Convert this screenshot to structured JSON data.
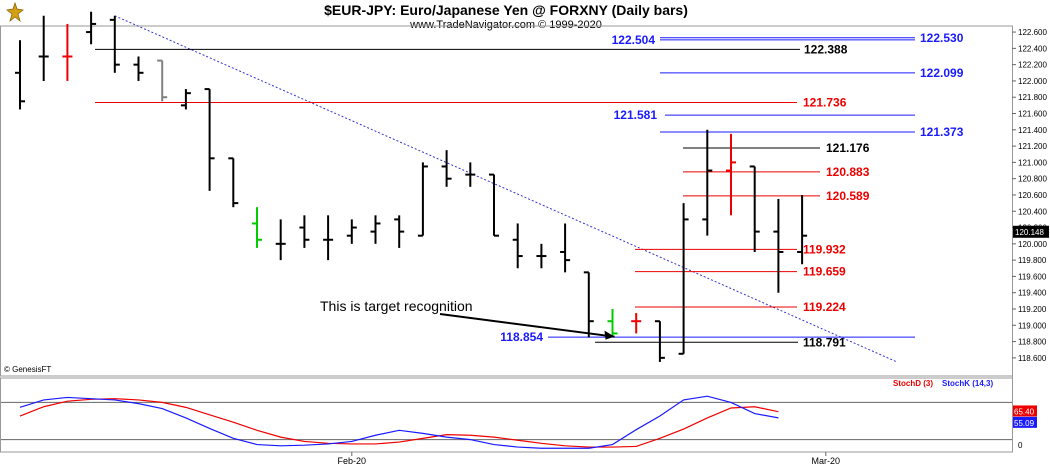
{
  "header": {
    "title": "$EUR-JPY:  Euro/Japanese Yen @ FORXNY  (Daily bars)",
    "subtitle": "www.TradeNavigator.com © 1999-2020"
  },
  "copyright": "© GenesisFT",
  "annotation": "This is target recognition",
  "colors": {
    "up": "#000000",
    "down": "#000000",
    "red": "#ee0000",
    "blue": "#1a1aff",
    "green": "#00cc00",
    "grid": "#cccccc"
  },
  "chart_data": [
    {
      "type": "ohlc",
      "title": "$EUR-JPY:  Euro/Japanese Yen @ FORXNY  (Daily bars)",
      "ylim": [
        118.5,
        122.65
      ],
      "y_ticks": [
        "122.600",
        "122.400",
        "122.200",
        "122.000",
        "121.800",
        "121.600",
        "121.400",
        "121.200",
        "121.000",
        "120.800",
        "120.600",
        "120.400",
        "120.200",
        "120.000",
        "119.800",
        "119.600",
        "119.400",
        "119.200",
        "119.000",
        "118.800",
        "118.600"
      ],
      "last_price": "120.148",
      "x_labels": [
        {
          "label": "Feb-20",
          "bar": 14
        },
        {
          "label": "Mar-20",
          "bar": 34
        }
      ],
      "bars": [
        {
          "o": 122.1,
          "h": 122.5,
          "l": 121.65,
          "c": 121.75
        },
        {
          "o": 122.3,
          "h": 122.8,
          "l": 122.0,
          "c": 122.3
        },
        {
          "o": 122.3,
          "h": 122.7,
          "l": 122.0,
          "c": 122.3,
          "color": "red"
        },
        {
          "o": 122.6,
          "h": 122.85,
          "l": 122.45,
          "c": 122.7
        },
        {
          "o": 122.75,
          "h": 122.8,
          "l": 122.1,
          "c": 122.2
        },
        {
          "o": 122.2,
          "h": 122.3,
          "l": 122.0,
          "c": 122.1
        },
        {
          "o": 122.25,
          "h": 122.25,
          "l": 121.75,
          "c": 121.8,
          "color": "gray"
        },
        {
          "o": 121.7,
          "h": 121.9,
          "l": 121.65,
          "c": 121.85
        },
        {
          "o": 121.9,
          "h": 121.9,
          "l": 120.65,
          "c": 121.05
        },
        {
          "o": 121.05,
          "h": 121.05,
          "l": 120.45,
          "c": 120.5
        },
        {
          "o": 120.25,
          "h": 120.45,
          "l": 119.95,
          "c": 120.05,
          "color": "green"
        },
        {
          "o": 120.0,
          "h": 120.3,
          "l": 119.8,
          "c": 120.0
        },
        {
          "o": 120.2,
          "h": 120.35,
          "l": 119.95,
          "c": 120.05
        },
        {
          "o": 120.05,
          "h": 120.35,
          "l": 119.8,
          "c": 120.05
        },
        {
          "o": 120.1,
          "h": 120.3,
          "l": 120.0,
          "c": 120.2
        },
        {
          "o": 120.15,
          "h": 120.35,
          "l": 120.0,
          "c": 120.25
        },
        {
          "o": 120.3,
          "h": 120.35,
          "l": 119.95,
          "c": 120.15
        },
        {
          "o": 120.1,
          "h": 121.0,
          "l": 120.1,
          "c": 120.95
        },
        {
          "o": 120.95,
          "h": 121.15,
          "l": 120.7,
          "c": 120.8
        },
        {
          "o": 120.85,
          "h": 121.0,
          "l": 120.7,
          "c": 120.85
        },
        {
          "o": 120.85,
          "h": 120.85,
          "l": 120.1,
          "c": 120.1
        },
        {
          "o": 120.05,
          "h": 120.25,
          "l": 119.7,
          "c": 119.85
        },
        {
          "o": 119.85,
          "h": 120.0,
          "l": 119.7,
          "c": 119.85
        },
        {
          "o": 119.9,
          "h": 120.25,
          "l": 119.65,
          "c": 119.8
        },
        {
          "o": 119.65,
          "h": 119.65,
          "l": 118.85,
          "c": 119.05
        },
        {
          "o": 119.05,
          "h": 119.2,
          "l": 118.85,
          "c": 118.9,
          "color": "green"
        },
        {
          "o": 119.05,
          "h": 119.15,
          "l": 118.9,
          "c": 119.05,
          "color": "red"
        },
        {
          "o": 119.05,
          "h": 119.05,
          "l": 118.55,
          "c": 118.6
        },
        {
          "o": 118.65,
          "h": 120.5,
          "l": 118.65,
          "c": 120.3
        },
        {
          "o": 120.3,
          "h": 121.4,
          "l": 120.1,
          "c": 120.9
        },
        {
          "o": 120.9,
          "h": 121.35,
          "l": 120.35,
          "c": 121.0,
          "color": "red"
        },
        {
          "o": 120.95,
          "h": 120.95,
          "l": 119.9,
          "c": 120.15
        },
        {
          "o": 120.15,
          "h": 120.55,
          "l": 119.4,
          "c": 119.9
        },
        {
          "o": 119.9,
          "h": 120.6,
          "l": 119.75,
          "c": 120.1
        }
      ],
      "levels": [
        {
          "value": 122.53,
          "label": "122.530",
          "color": "blue",
          "side": "right"
        },
        {
          "value": 122.504,
          "label": "122.504",
          "color": "blue",
          "side": "left"
        },
        {
          "value": 122.388,
          "label": "122.388",
          "color": "black",
          "side": "mid"
        },
        {
          "value": 122.099,
          "label": "122.099",
          "color": "blue",
          "side": "right"
        },
        {
          "value": 121.736,
          "label": "121.736",
          "color": "red",
          "side": "mid"
        },
        {
          "value": 121.581,
          "label": "121.581",
          "color": "blue",
          "side": "left"
        },
        {
          "value": 121.373,
          "label": "121.373",
          "color": "blue",
          "side": "right"
        },
        {
          "value": 121.176,
          "label": "121.176",
          "color": "black",
          "side": "mid"
        },
        {
          "value": 120.883,
          "label": "120.883",
          "color": "red",
          "side": "mid"
        },
        {
          "value": 120.589,
          "label": "120.589",
          "color": "red",
          "side": "mid"
        },
        {
          "value": 119.932,
          "label": "119.932",
          "color": "red",
          "side": "mid"
        },
        {
          "value": 119.659,
          "label": "119.659",
          "color": "red",
          "side": "mid"
        },
        {
          "value": 119.224,
          "label": "119.224",
          "color": "red",
          "side": "mid"
        },
        {
          "value": 118.854,
          "label": "118.854",
          "color": "blue",
          "side": "left"
        },
        {
          "value": 118.791,
          "label": "118.791",
          "color": "black",
          "side": "mid"
        }
      ],
      "trendline": {
        "from": {
          "bar": 4,
          "value": 122.8
        },
        "to": {
          "bar": 37,
          "value": 118.55
        }
      }
    },
    {
      "type": "line",
      "legend": [
        "StochD (3)",
        "StochK (14,3)"
      ],
      "ylim": [
        0,
        100
      ],
      "y_ticks": [
        "0"
      ],
      "last_values": {
        "StochD": "65.40",
        "StochK": "55.09"
      },
      "series": [
        {
          "name": "StochD (3)",
          "color": "#ee0000",
          "values": [
            58,
            73,
            82,
            85,
            86,
            84,
            80,
            72,
            60,
            48,
            35,
            24,
            17,
            14,
            13,
            13,
            16,
            22,
            28,
            27,
            24,
            19,
            14,
            10,
            8,
            8,
            9,
            22,
            37,
            55,
            71,
            73,
            65
          ]
        },
        {
          "name": "StochK (14,3)",
          "color": "#1a1aff",
          "values": [
            72,
            84,
            88,
            86,
            84,
            78,
            70,
            55,
            38,
            22,
            12,
            10,
            11,
            13,
            17,
            27,
            35,
            30,
            24,
            20,
            12,
            8,
            6,
            6,
            6,
            12,
            36,
            58,
            84,
            90,
            80,
            62,
            55
          ]
        }
      ]
    }
  ]
}
